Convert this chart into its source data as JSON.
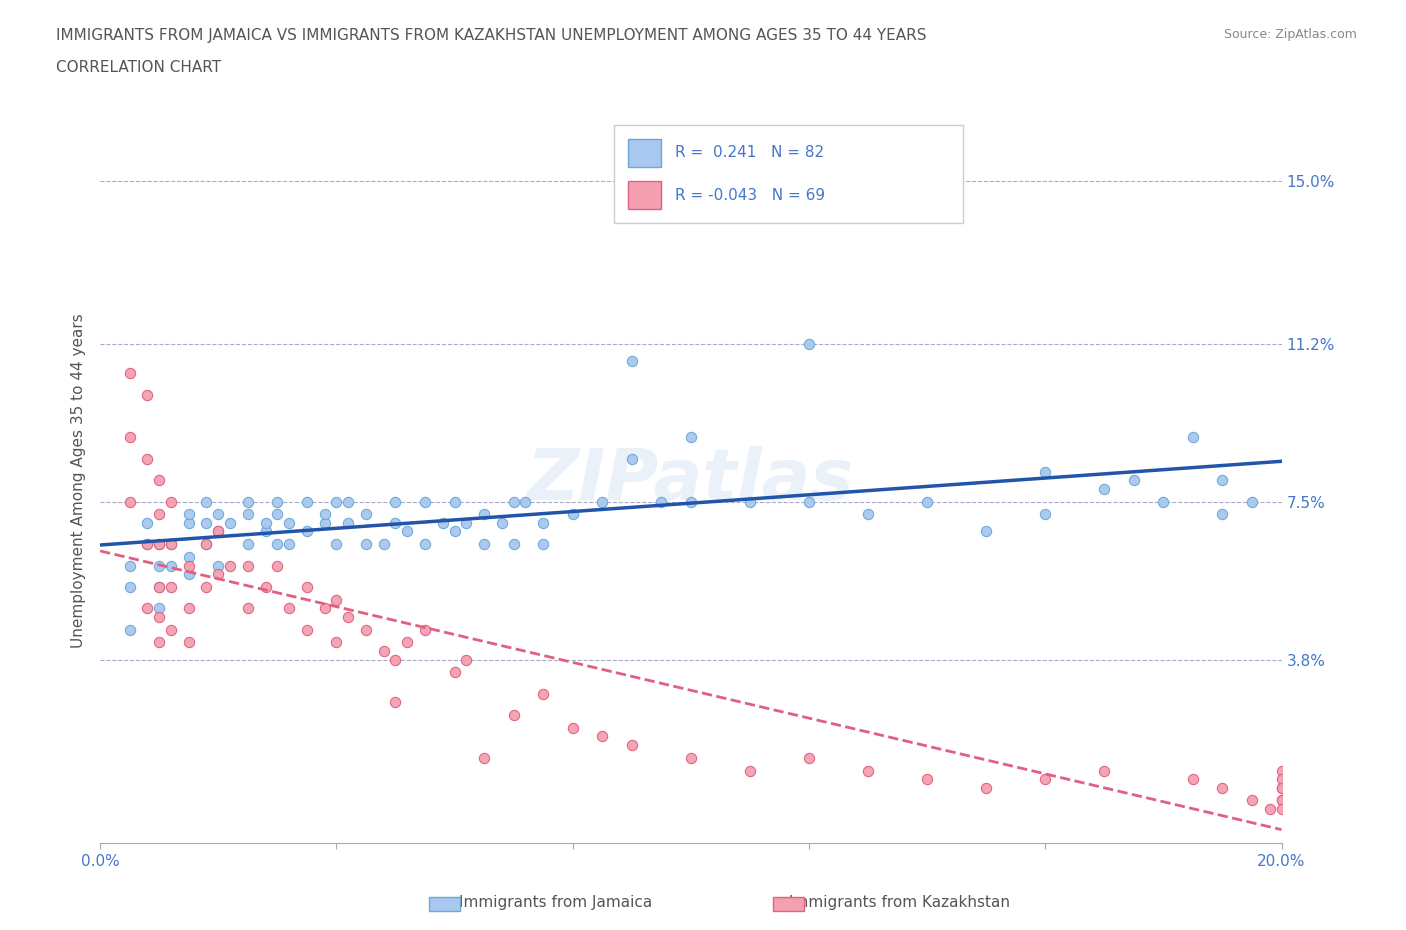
{
  "title_line1": "IMMIGRANTS FROM JAMAICA VS IMMIGRANTS FROM KAZAKHSTAN UNEMPLOYMENT AMONG AGES 35 TO 44 YEARS",
  "title_line2": "CORRELATION CHART",
  "source_text": "Source: ZipAtlas.com",
  "watermark": "ZIPatlas",
  "ylabel": "Unemployment Among Ages 35 to 44 years",
  "xlim": [
    0.0,
    0.2
  ],
  "ylim": [
    -0.005,
    0.165
  ],
  "xtick_vals": [
    0.0,
    0.04,
    0.08,
    0.12,
    0.16,
    0.2
  ],
  "ytick_right_vals": [
    0.15,
    0.112,
    0.075,
    0.038
  ],
  "ytick_right_labels": [
    "15.0%",
    "11.2%",
    "7.5%",
    "3.8%"
  ],
  "hgrid_vals": [
    0.15,
    0.112,
    0.075,
    0.038
  ],
  "jamaica_color": "#a8c8f0",
  "jamaica_edge_color": "#6aaad4",
  "kazakhstan_color": "#f4a0b0",
  "kazakhstan_edge_color": "#e06080",
  "jamaica_line_color": "#2255aa",
  "kazakhstan_line_color": "#e06080",
  "jamaica_R": 0.241,
  "jamaica_N": 82,
  "kazakhstan_R": -0.043,
  "kazakhstan_N": 69,
  "legend_label1": "Immigrants from Jamaica",
  "legend_label2": "Immigrants from Kazakhstan",
  "title_color": "#555555",
  "axis_color": "#4477cc",
  "jamaica_scatter_x": [
    0.01,
    0.005,
    0.005,
    0.005,
    0.008,
    0.008,
    0.01,
    0.01,
    0.01,
    0.012,
    0.012,
    0.015,
    0.015,
    0.015,
    0.015,
    0.018,
    0.018,
    0.018,
    0.02,
    0.02,
    0.02,
    0.022,
    0.025,
    0.025,
    0.025,
    0.028,
    0.028,
    0.03,
    0.03,
    0.03,
    0.032,
    0.032,
    0.035,
    0.035,
    0.038,
    0.038,
    0.04,
    0.04,
    0.042,
    0.042,
    0.045,
    0.045,
    0.048,
    0.05,
    0.05,
    0.052,
    0.055,
    0.055,
    0.058,
    0.06,
    0.06,
    0.062,
    0.065,
    0.065,
    0.068,
    0.07,
    0.07,
    0.072,
    0.075,
    0.075,
    0.08,
    0.085,
    0.09,
    0.09,
    0.095,
    0.1,
    0.1,
    0.11,
    0.12,
    0.12,
    0.13,
    0.14,
    0.15,
    0.16,
    0.16,
    0.175,
    0.17,
    0.18,
    0.185,
    0.19,
    0.195,
    0.19
  ],
  "jamaica_scatter_y": [
    0.05,
    0.06,
    0.055,
    0.045,
    0.065,
    0.07,
    0.055,
    0.06,
    0.065,
    0.06,
    0.065,
    0.07,
    0.062,
    0.058,
    0.072,
    0.065,
    0.07,
    0.075,
    0.068,
    0.072,
    0.06,
    0.07,
    0.065,
    0.072,
    0.075,
    0.068,
    0.07,
    0.072,
    0.065,
    0.075,
    0.07,
    0.065,
    0.068,
    0.075,
    0.07,
    0.072,
    0.065,
    0.075,
    0.07,
    0.075,
    0.065,
    0.072,
    0.065,
    0.07,
    0.075,
    0.068,
    0.075,
    0.065,
    0.07,
    0.075,
    0.068,
    0.07,
    0.072,
    0.065,
    0.07,
    0.075,
    0.065,
    0.075,
    0.07,
    0.065,
    0.072,
    0.075,
    0.108,
    0.085,
    0.075,
    0.09,
    0.075,
    0.075,
    0.112,
    0.075,
    0.072,
    0.075,
    0.068,
    0.082,
    0.072,
    0.08,
    0.078,
    0.075,
    0.09,
    0.072,
    0.075,
    0.08
  ],
  "kazakhstan_scatter_x": [
    0.005,
    0.005,
    0.005,
    0.008,
    0.008,
    0.008,
    0.008,
    0.01,
    0.01,
    0.01,
    0.01,
    0.01,
    0.01,
    0.012,
    0.012,
    0.012,
    0.012,
    0.015,
    0.015,
    0.015,
    0.018,
    0.018,
    0.02,
    0.02,
    0.022,
    0.025,
    0.025,
    0.028,
    0.03,
    0.032,
    0.035,
    0.035,
    0.038,
    0.04,
    0.04,
    0.042,
    0.045,
    0.048,
    0.05,
    0.05,
    0.052,
    0.055,
    0.06,
    0.062,
    0.065,
    0.07,
    0.075,
    0.08,
    0.085,
    0.09,
    0.1,
    0.11,
    0.12,
    0.13,
    0.14,
    0.15,
    0.16,
    0.17,
    0.185,
    0.19,
    0.195,
    0.198,
    0.2,
    0.2,
    0.2,
    0.2,
    0.2,
    0.2,
    0.2
  ],
  "kazakhstan_scatter_y": [
    0.105,
    0.09,
    0.075,
    0.1,
    0.085,
    0.065,
    0.05,
    0.08,
    0.072,
    0.065,
    0.055,
    0.048,
    0.042,
    0.075,
    0.065,
    0.055,
    0.045,
    0.06,
    0.05,
    0.042,
    0.065,
    0.055,
    0.068,
    0.058,
    0.06,
    0.06,
    0.05,
    0.055,
    0.06,
    0.05,
    0.055,
    0.045,
    0.05,
    0.052,
    0.042,
    0.048,
    0.045,
    0.04,
    0.038,
    0.028,
    0.042,
    0.045,
    0.035,
    0.038,
    0.015,
    0.025,
    0.03,
    0.022,
    0.02,
    0.018,
    0.015,
    0.012,
    0.015,
    0.012,
    0.01,
    0.008,
    0.01,
    0.012,
    0.01,
    0.008,
    0.005,
    0.003,
    0.008,
    0.005,
    0.012,
    0.01,
    0.008,
    0.005,
    0.003
  ]
}
